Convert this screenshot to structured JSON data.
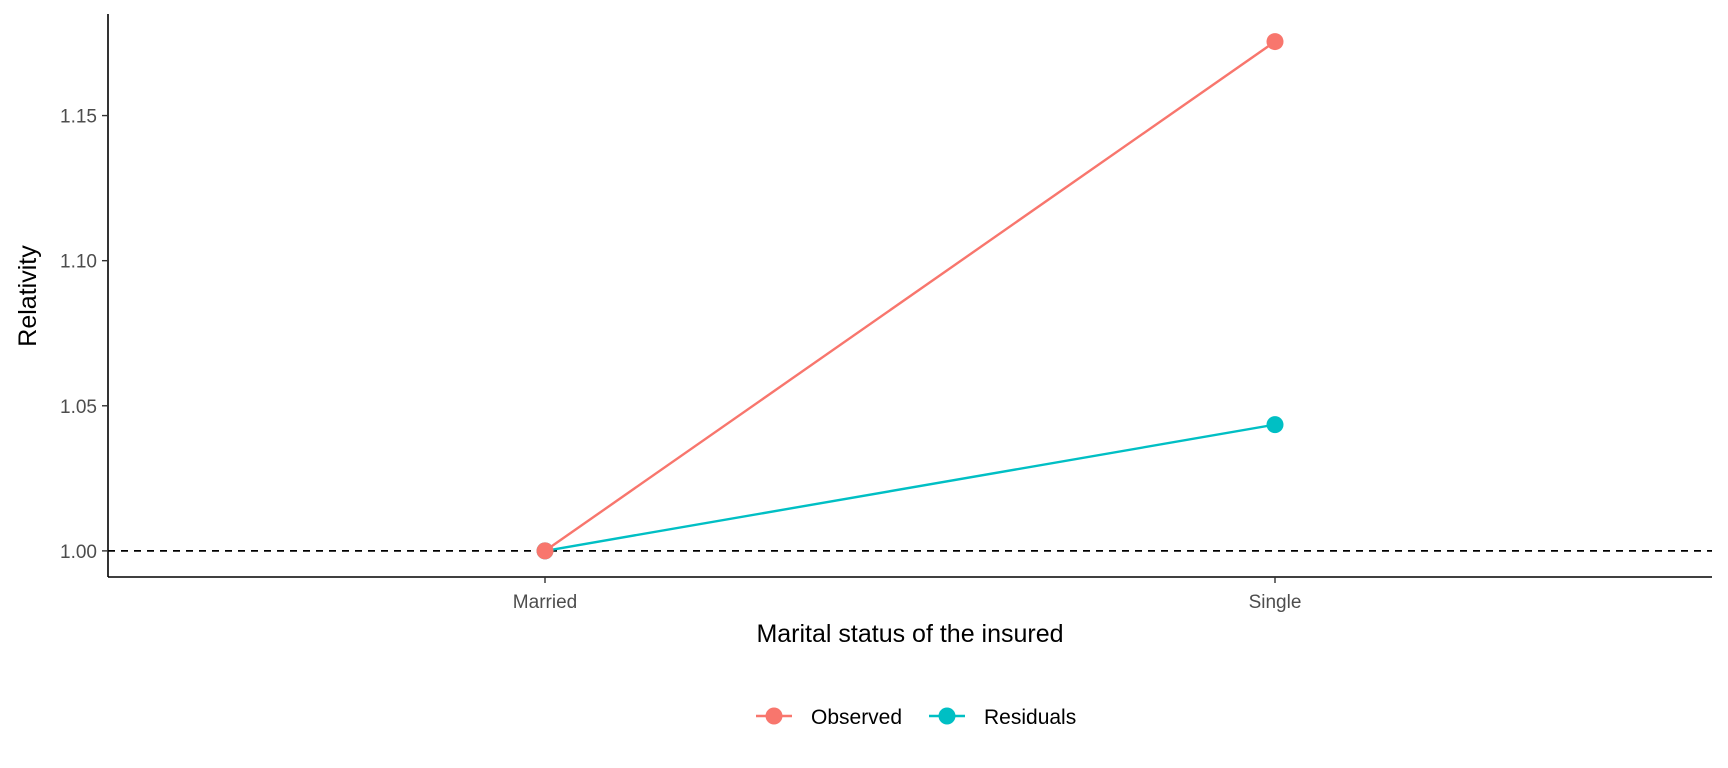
{
  "chart_data": {
    "type": "line",
    "title": "",
    "xlabel": "Marital status of the insured",
    "ylabel": "Relativity",
    "categories": [
      "Married",
      "Single"
    ],
    "ylim": [
      0.991,
      1.185
    ],
    "yticks": [
      1.0,
      1.05,
      1.1,
      1.15
    ],
    "ytick_labels": [
      "1.00",
      "1.05",
      "1.10",
      "1.15"
    ],
    "reference_line": {
      "y": 1.0,
      "style": "dashed",
      "color": "#000000"
    },
    "grid": false,
    "legend_position": "bottom",
    "series": [
      {
        "name": "Observed",
        "values": [
          1.0,
          1.1755
        ],
        "color": "#F8766D"
      },
      {
        "name": "Residuals",
        "values": [
          1.0,
          1.0435
        ],
        "color": "#00BFC4"
      }
    ]
  }
}
